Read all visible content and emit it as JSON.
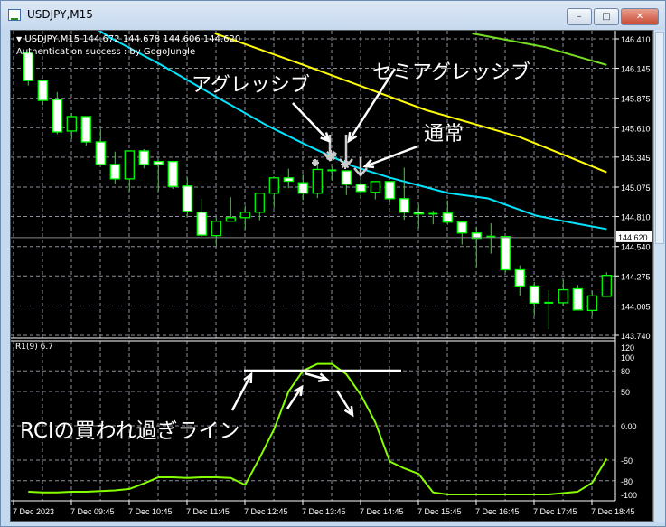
{
  "window": {
    "title": "USDJPY,M15",
    "buttons": {
      "minimize": "–",
      "maximize": "□",
      "close": "✕"
    }
  },
  "chart_header": {
    "symbol_line": "USDJPY,M15  144.672 144.678 144.606 144.620",
    "auth_text": "Authentication success : by GogoJungle"
  },
  "current_price": {
    "value": 144.62,
    "label": "144.620"
  },
  "colors": {
    "bull_outline": "#00ff00",
    "bear_body": "#ffffff",
    "ma_cyan": "#00e5ff",
    "ma_yellow": "#ffff00",
    "ma_green": "#77dd22",
    "rci": "#88ff00",
    "grid": "#8a8f99",
    "background": "#000000"
  },
  "chart_data": {
    "type": "candlestick",
    "price_axis": {
      "ylim": [
        143.74,
        146.41
      ],
      "ticks": [
        "146.410",
        "146.145",
        "145.875",
        "145.610",
        "145.345",
        "145.075",
        "144.810",
        "144.540",
        "144.275",
        "144.005",
        "143.740"
      ]
    },
    "time_axis": {
      "ticks": [
        "7 Dec 2023",
        "7 Dec 09:45",
        "7 Dec 10:45",
        "7 Dec 11:45",
        "7 Dec 12:45",
        "7 Dec 13:45",
        "7 Dec 14:45",
        "7 Dec 15:45",
        "7 Dec 16:45",
        "7 Dec 17:45",
        "7 Dec 18:45"
      ]
    },
    "ohlc": [
      [
        146.283,
        146.29,
        145.99,
        146.034
      ],
      [
        146.034,
        146.034,
        145.812,
        145.856
      ],
      [
        145.864,
        145.931,
        145.552,
        145.572
      ],
      [
        145.58,
        145.742,
        145.511,
        145.71
      ],
      [
        145.71,
        145.71,
        145.45,
        145.482
      ],
      [
        145.482,
        145.598,
        145.271,
        145.279
      ],
      [
        145.279,
        145.395,
        145.106,
        145.149
      ],
      [
        145.149,
        145.401,
        145.038,
        145.401
      ],
      [
        145.401,
        145.417,
        145.244,
        145.279
      ],
      [
        145.306,
        145.31,
        145.038,
        145.279
      ],
      [
        145.306,
        145.306,
        145.06,
        145.081
      ],
      [
        145.085,
        145.16,
        144.809,
        144.857
      ],
      [
        144.849,
        144.971,
        144.627,
        144.643
      ],
      [
        144.638,
        144.8,
        144.546,
        144.768
      ],
      [
        144.768,
        144.984,
        144.768,
        144.8
      ],
      [
        144.8,
        144.908,
        144.695,
        144.849
      ],
      [
        144.849,
        145.02,
        144.776,
        145.02
      ],
      [
        145.02,
        145.158,
        144.89,
        145.158
      ],
      [
        145.158,
        145.241,
        145.065,
        145.128
      ],
      [
        145.114,
        145.187,
        144.957,
        145.02
      ],
      [
        145.02,
        145.28,
        144.976,
        145.234
      ],
      [
        145.226,
        145.26,
        145.133,
        145.226
      ],
      [
        145.222,
        145.222,
        145.003,
        145.1
      ],
      [
        145.1,
        145.146,
        144.976,
        145.036
      ],
      [
        145.028,
        145.125,
        144.965,
        145.125
      ],
      [
        145.125,
        145.125,
        144.938,
        144.971
      ],
      [
        144.971,
        145.25,
        144.781,
        144.849
      ],
      [
        144.849,
        144.917,
        144.706,
        144.833
      ],
      [
        144.835,
        144.862,
        144.74,
        144.835
      ],
      [
        144.841,
        144.957,
        144.736,
        144.76
      ],
      [
        144.76,
        144.76,
        144.557,
        144.662
      ],
      [
        144.662,
        144.719,
        144.356,
        144.614
      ],
      [
        144.63,
        144.749,
        144.476,
        144.63
      ],
      [
        144.63,
        144.63,
        144.308,
        144.33
      ],
      [
        144.33,
        144.37,
        144.099,
        144.184
      ],
      [
        144.184,
        144.221,
        143.916,
        144.03
      ],
      [
        144.034,
        144.145,
        143.794,
        144.034
      ],
      [
        144.034,
        144.24,
        144.01,
        144.151
      ],
      [
        144.159,
        144.194,
        143.969,
        143.969
      ],
      [
        143.965,
        144.14,
        143.916,
        144.095
      ],
      [
        144.091,
        144.308,
        144.091,
        144.28
      ]
    ],
    "moving_averages": [
      {
        "color": "#00e5ff",
        "points": [
          [
            4.5,
            146.52
          ],
          [
            5.7,
            146.418
          ],
          [
            9.2,
            146.175
          ],
          [
            13.3,
            145.866
          ],
          [
            16.5,
            145.631
          ],
          [
            19.4,
            145.444
          ],
          [
            22.4,
            145.266
          ],
          [
            25,
            145.16
          ],
          [
            29,
            145.022
          ],
          [
            31.8,
            144.973
          ],
          [
            35.1,
            144.819
          ],
          [
            37.6,
            144.754
          ],
          [
            40,
            144.697
          ]
        ]
      },
      {
        "color": "#ffff00",
        "points": [
          [
            12.9,
            146.459
          ],
          [
            13.8,
            146.418
          ],
          [
            19.4,
            146.158
          ],
          [
            27.5,
            145.769
          ],
          [
            34,
            145.525
          ],
          [
            40,
            145.209
          ]
        ]
      },
      {
        "color": "#77dd22",
        "points": [
          [
            30.7,
            146.459
          ],
          [
            35.7,
            146.337
          ],
          [
            40,
            146.175
          ]
        ]
      }
    ],
    "rci": {
      "label": "R1(9) 6.7",
      "ylim": [
        -100,
        120
      ],
      "ticks": [
        "120",
        "100",
        "80",
        "50",
        "0.00",
        "-50",
        "-80",
        "-100"
      ],
      "tick_values": [
        120,
        100,
        80,
        50,
        0,
        -50,
        -80,
        -100
      ],
      "values": [
        -96,
        -97,
        -97,
        -96,
        -96,
        -95,
        -94,
        -92,
        -84,
        -75,
        -75,
        -76,
        -75,
        -75,
        -76,
        -86,
        -47,
        -5,
        50,
        80,
        90,
        90,
        75,
        45,
        5,
        -52,
        -62,
        -70,
        -97,
        -100,
        -100,
        -100,
        -100,
        -100,
        -100,
        -100,
        -100,
        -98,
        -96,
        -83,
        -48
      ]
    }
  },
  "annotations": {
    "aggressive": "アグレッシブ",
    "semi_aggressive": "セミアグレッシブ",
    "normal": "通常",
    "rci_line": "RCIの買われ過ぎライン"
  }
}
